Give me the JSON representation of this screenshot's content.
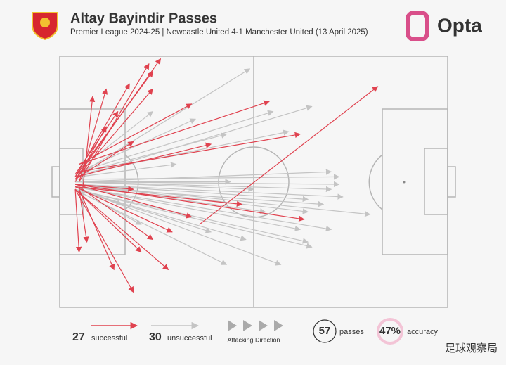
{
  "chart_data": {
    "type": "pass-map",
    "title": "Altay Bayindir Passes",
    "subtitle": "Premier League 2024-25 | Newcastle United 4-1 Manchester United (13 April 2025)",
    "brand": "Opta",
    "watermark": "足球观察局",
    "direction_label": "Attacking Direction",
    "series": [
      {
        "name": "successful",
        "count": 27,
        "color": "#e0424f",
        "passes": [
          {
            "start": [
              4,
              49
            ],
            "end": [
              26,
              1
            ]
          },
          {
            "start": [
              4,
              48
            ],
            "end": [
              24,
              6
            ]
          },
          {
            "start": [
              5,
              50
            ],
            "end": [
              23,
              3
            ]
          },
          {
            "start": [
              4,
              48
            ],
            "end": [
              18,
              11
            ]
          },
          {
            "start": [
              5,
              50
            ],
            "end": [
              12,
              13
            ]
          },
          {
            "start": [
              6,
              52
            ],
            "end": [
              8.5,
              16
            ]
          },
          {
            "start": [
              4,
              47
            ],
            "end": [
              15,
              22
            ]
          },
          {
            "start": [
              5,
              43
            ],
            "end": [
              54,
              18
            ]
          },
          {
            "start": [
              5,
              46
            ],
            "end": [
              62,
              31
            ]
          },
          {
            "start": [
              36,
              67
            ],
            "end": [
              82,
              12
            ]
          },
          {
            "start": [
              4,
              48
            ],
            "end": [
              39,
              35
            ]
          },
          {
            "start": [
              5,
              43
            ],
            "end": [
              34,
              19
            ]
          },
          {
            "start": [
              4,
              49
            ],
            "end": [
              24,
              13
            ]
          },
          {
            "start": [
              4,
              51
            ],
            "end": [
              19,
              53
            ]
          },
          {
            "start": [
              4,
              51
            ],
            "end": [
              63,
              65
            ]
          },
          {
            "start": [
              4,
              52
            ],
            "end": [
              47,
              59
            ]
          },
          {
            "start": [
              4,
              52
            ],
            "end": [
              29,
              70
            ]
          },
          {
            "start": [
              4,
              53
            ],
            "end": [
              28,
              85
            ]
          },
          {
            "start": [
              4,
              53
            ],
            "end": [
              19,
              94
            ]
          },
          {
            "start": [
              5,
              53
            ],
            "end": [
              14,
              85
            ]
          },
          {
            "start": [
              4,
              53
            ],
            "end": [
              5,
              78
            ]
          },
          {
            "start": [
              5,
              53
            ],
            "end": [
              7,
              74
            ]
          },
          {
            "start": [
              4,
              53
            ],
            "end": [
              21,
              78
            ]
          },
          {
            "start": [
              4,
              51
            ],
            "end": [
              34,
              64
            ]
          },
          {
            "start": [
              4,
              50
            ],
            "end": [
              12,
              28
            ]
          },
          {
            "start": [
              4,
              49
            ],
            "end": [
              19,
              34
            ]
          },
          {
            "start": [
              5,
              52
            ],
            "end": [
              24,
              73
            ]
          }
        ]
      },
      {
        "name": "unsuccessful",
        "count": 30,
        "color": "#c4c4c4",
        "passes": [
          {
            "start": [
              5,
              47
            ],
            "end": [
              49,
              5
            ]
          },
          {
            "start": [
              5,
              48
            ],
            "end": [
              65,
              20
            ]
          },
          {
            "start": [
              4,
              50
            ],
            "end": [
              70,
              46
            ]
          },
          {
            "start": [
              4,
              51
            ],
            "end": [
              80,
              63
            ]
          },
          {
            "start": [
              4,
              51
            ],
            "end": [
              73,
              56
            ]
          },
          {
            "start": [
              4,
              50
            ],
            "end": [
              72,
              51
            ]
          },
          {
            "start": [
              4,
              52
            ],
            "end": [
              68,
              59
            ]
          },
          {
            "start": [
              4,
              53
            ],
            "end": [
              64,
              74
            ]
          },
          {
            "start": [
              5,
              53
            ],
            "end": [
              57,
              83
            ]
          },
          {
            "start": [
              5,
              54
            ],
            "end": [
              43,
              83
            ]
          },
          {
            "start": [
              4,
              47
            ],
            "end": [
              43,
              31
            ]
          },
          {
            "start": [
              5,
              47
            ],
            "end": [
              59,
              30
            ]
          },
          {
            "start": [
              5,
              46
            ],
            "end": [
              55,
              22
            ]
          },
          {
            "start": [
              5,
              46
            ],
            "end": [
              35,
              25
            ]
          },
          {
            "start": [
              5,
              45
            ],
            "end": [
              24,
              22
            ]
          },
          {
            "start": [
              4,
              52
            ],
            "end": [
              16,
              59
            ]
          },
          {
            "start": [
              4,
              52
            ],
            "end": [
              70,
              69
            ]
          },
          {
            "start": [
              4,
              52
            ],
            "end": [
              62,
              69
            ]
          },
          {
            "start": [
              4,
              51
            ],
            "end": [
              64,
              62
            ]
          },
          {
            "start": [
              4,
              49
            ],
            "end": [
              72,
              48
            ]
          },
          {
            "start": [
              4,
              50
            ],
            "end": [
              50,
              53
            ]
          },
          {
            "start": [
              4,
              53
            ],
            "end": [
              39,
              70
            ]
          },
          {
            "start": [
              4,
              53
            ],
            "end": [
              21,
              67
            ]
          },
          {
            "start": [
              4,
              51
            ],
            "end": [
              64,
              57
            ]
          },
          {
            "start": [
              4,
              50
            ],
            "end": [
              70,
              53
            ]
          },
          {
            "start": [
              4,
              53
            ],
            "end": [
              48,
              73
            ]
          },
          {
            "start": [
              4,
              51
            ],
            "end": [
              53,
              62
            ]
          },
          {
            "start": [
              4,
              53
            ],
            "end": [
              65,
              76
            ]
          },
          {
            "start": [
              5,
              48
            ],
            "end": [
              30,
              43
            ]
          },
          {
            "start": [
              4,
              50
            ],
            "end": [
              44,
              50
            ]
          }
        ]
      }
    ],
    "stats": {
      "passes": 57,
      "passes_label": "passes",
      "accuracy": {
        "value": 47,
        "label": "47%"
      },
      "accuracy_label": "accuracy"
    }
  }
}
